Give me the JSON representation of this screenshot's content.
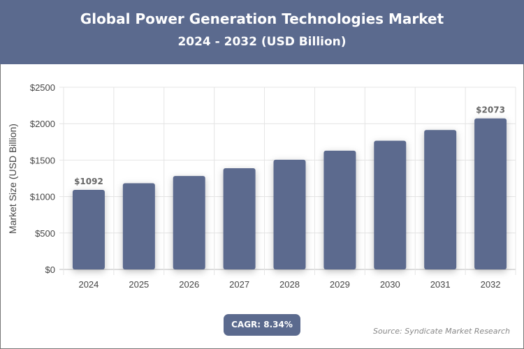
{
  "header": {
    "title": "Global Power Generation Technologies Market",
    "subtitle": "2024 - 2032 (USD Billion)"
  },
  "chart_data": {
    "type": "bar",
    "title": "Global Power Generation Technologies Market",
    "subtitle": "2024 - 2032 (USD Billion)",
    "categories": [
      "2024",
      "2025",
      "2026",
      "2027",
      "2028",
      "2029",
      "2030",
      "2031",
      "2032"
    ],
    "values": [
      1092,
      1183,
      1282,
      1389,
      1505,
      1630,
      1766,
      1913,
      2073
    ],
    "data_labels": {
      "0": "$1092",
      "8": "$2073"
    },
    "xlabel": "",
    "ylabel": "Market Size (USD Billion)",
    "ylim": [
      0,
      2500
    ],
    "yticks": [
      "$0",
      "$500",
      "$1000",
      "$1500",
      "$2000",
      "$2500"
    ],
    "grid": true,
    "bar_color": "#5b6a8e"
  },
  "footer": {
    "cagr": "CAGR: 8.34%",
    "source": "Source: Syndicate Market Research"
  }
}
